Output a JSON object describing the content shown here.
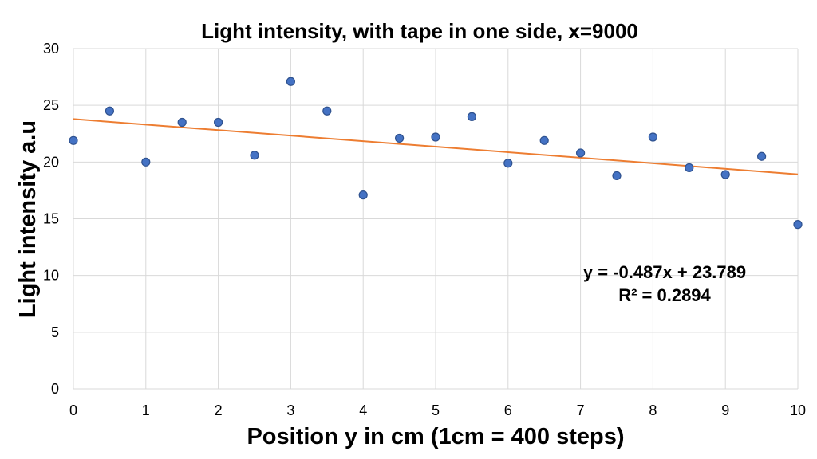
{
  "chart_data": {
    "type": "scatter",
    "title": "Light intensity, with tape in one side,  x=9000",
    "xlabel": "Position y in cm (1cm = 400 steps)",
    "ylabel": "Light intensity a.u",
    "xlim": [
      0,
      10
    ],
    "ylim": [
      0,
      30
    ],
    "x_ticks": [
      "0",
      "1",
      "2",
      "3",
      "4",
      "5",
      "6",
      "7",
      "8",
      "9",
      "10"
    ],
    "y_ticks": [
      "0",
      "5",
      "10",
      "15",
      "20",
      "25",
      "30"
    ],
    "grid": true,
    "legend": "none",
    "colors": {
      "points": "#4472c4",
      "point_edge": "#2f528f",
      "trendline": "#ed7d31",
      "grid": "#d9d9d9"
    },
    "series": [
      {
        "x": [
          0,
          0.5,
          1,
          1.5,
          2,
          2.5,
          3,
          3.5,
          4,
          4.5,
          5,
          5.5,
          6,
          6.5,
          7,
          7.5,
          8,
          8.5,
          9,
          9.5,
          10
        ],
        "y": [
          21.9,
          24.5,
          20.0,
          23.5,
          23.5,
          20.6,
          27.1,
          24.5,
          17.1,
          22.1,
          22.2,
          24.0,
          19.9,
          21.9,
          20.8,
          18.8,
          22.2,
          19.5,
          18.9,
          20.5,
          14.5
        ]
      }
    ],
    "trendline": {
      "type": "linear",
      "slope": -0.487,
      "intercept": 23.789,
      "equation_label": "y = -0.487x + 23.789",
      "r2_label": "R² = 0.2894"
    }
  }
}
